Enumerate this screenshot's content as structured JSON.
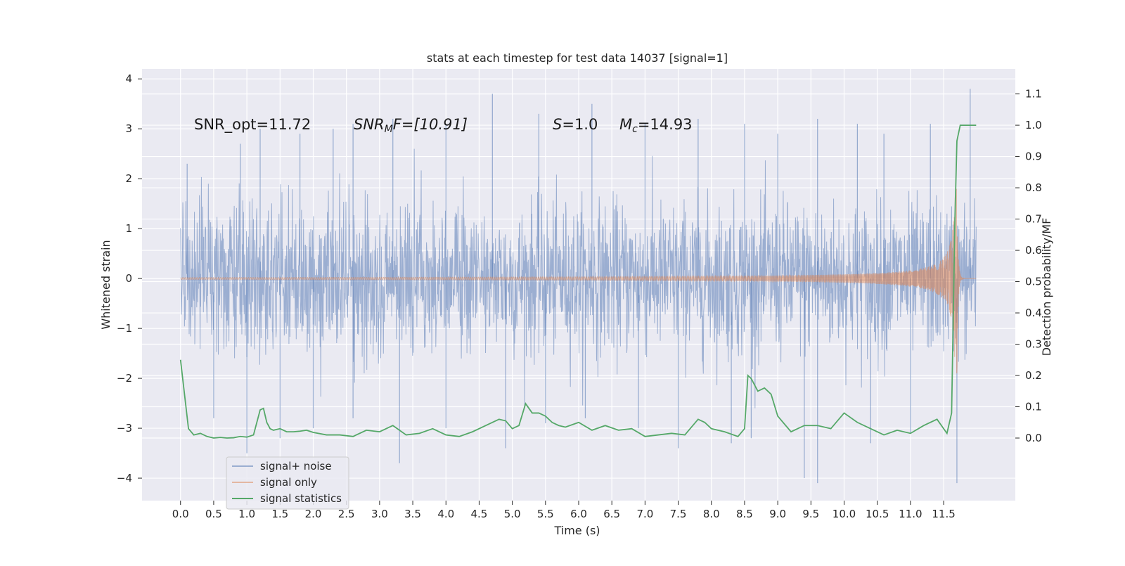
{
  "chart_data": {
    "type": "line",
    "title": "stats at each timestep for test data 14037 [signal=1]",
    "xlabel": "Time (s)",
    "ylabel": "Whitened strain",
    "ylabel_right": "Detection probability/MF",
    "xlim": [
      -0.58,
      12.58
    ],
    "ylim": [
      -4.45,
      4.2
    ],
    "ylim_right": [
      -0.2,
      1.18
    ],
    "xticks": [
      "0.0",
      "0.5",
      "1.0",
      "1.5",
      "2.0",
      "2.5",
      "3.0",
      "3.5",
      "4.0",
      "4.5",
      "5.0",
      "5.5",
      "6.0",
      "6.5",
      "7.0",
      "7.5",
      "8.0",
      "8.5",
      "9.0",
      "9.5",
      "10.0",
      "10.5",
      "11.0",
      "11.5"
    ],
    "yticks": [
      "4",
      "3",
      "2",
      "1",
      "0",
      "−1",
      "−2",
      "−3",
      "−4"
    ],
    "yticks_right": [
      "1.1",
      "1.0",
      "0.9",
      "0.8",
      "0.7",
      "0.6",
      "0.5",
      "0.4",
      "0.3",
      "0.2",
      "0.1",
      "0.0"
    ],
    "grid": true,
    "legend_position": "lower-left",
    "annotations": {
      "snr_opt": "SNR_opt=11.72",
      "snr_mf_main": "SNR",
      "snr_mf_sub": "M",
      "snr_mf_rest": "F=[10.91]",
      "s_main": "S",
      "s_rest": "=1.0",
      "mc_main": "M",
      "mc_sub": "c",
      "mc_rest": "=14.93"
    },
    "series": [
      {
        "name": "signal+ noise",
        "color": "#4c72b0",
        "description_only": false,
        "envelope": {
          "t": [
            0.0,
            11.99
          ],
          "typical_amplitude": 1.5,
          "peak_high": [
            [
              0.1,
              2.3
            ],
            [
              0.9,
              2.7
            ],
            [
              1.2,
              3.0
            ],
            [
              1.8,
              2.9
            ],
            [
              2.3,
              3.0
            ],
            [
              2.6,
              3.1
            ],
            [
              3.2,
              3.2
            ],
            [
              4.0,
              3.1
            ],
            [
              4.7,
              3.7
            ],
            [
              5.4,
              3.3
            ],
            [
              6.2,
              3.5
            ],
            [
              7.0,
              3.1
            ],
            [
              7.8,
              3.2
            ],
            [
              8.5,
              3.1
            ],
            [
              9.0,
              2.9
            ],
            [
              9.6,
              3.2
            ],
            [
              10.2,
              3.1
            ],
            [
              10.6,
              2.9
            ],
            [
              11.3,
              3.1
            ],
            [
              11.9,
              3.8
            ]
          ],
          "peak_low": [
            [
              0.5,
              -2.8
            ],
            [
              1.0,
              -3.5
            ],
            [
              1.5,
              -3.2
            ],
            [
              2.0,
              -3.0
            ],
            [
              2.6,
              -2.8
            ],
            [
              3.3,
              -3.7
            ],
            [
              4.0,
              -3.0
            ],
            [
              4.9,
              -3.4
            ],
            [
              5.5,
              -2.9
            ],
            [
              6.1,
              -2.8
            ],
            [
              6.9,
              -3.0
            ],
            [
              7.5,
              -3.4
            ],
            [
              8.3,
              -3.3
            ],
            [
              8.6,
              -3.2
            ],
            [
              9.4,
              -4.0
            ],
            [
              9.6,
              -4.1
            ],
            [
              10.4,
              -3.3
            ],
            [
              11.0,
              -3.1
            ],
            [
              11.7,
              -4.1
            ]
          ]
        }
      },
      {
        "name": "signal only",
        "color": "#dd8452",
        "chirp": {
          "t_start": 0.0,
          "t_merge": 11.7,
          "t_end": 11.99,
          "amp_start": 0.02,
          "amp_peak": 2.0
        }
      },
      {
        "name": "signal statistics",
        "color": "#55a868",
        "axis": "right",
        "x": [
          0.0,
          0.12,
          0.2,
          0.3,
          0.4,
          0.5,
          0.6,
          0.7,
          0.8,
          0.9,
          1.0,
          1.1,
          1.2,
          1.25,
          1.3,
          1.35,
          1.4,
          1.5,
          1.6,
          1.7,
          1.8,
          1.9,
          2.0,
          2.2,
          2.4,
          2.6,
          2.8,
          3.0,
          3.2,
          3.4,
          3.6,
          3.8,
          4.0,
          4.2,
          4.4,
          4.6,
          4.8,
          4.9,
          5.0,
          5.1,
          5.2,
          5.3,
          5.4,
          5.5,
          5.6,
          5.7,
          5.8,
          6.0,
          6.2,
          6.4,
          6.6,
          6.8,
          7.0,
          7.2,
          7.4,
          7.6,
          7.8,
          7.9,
          8.0,
          8.2,
          8.4,
          8.5,
          8.55,
          8.6,
          8.7,
          8.8,
          8.9,
          9.0,
          9.2,
          9.4,
          9.6,
          9.8,
          10.0,
          10.2,
          10.4,
          10.6,
          10.8,
          11.0,
          11.2,
          11.4,
          11.55,
          11.62,
          11.67,
          11.7,
          11.75,
          11.8,
          11.9,
          11.99
        ],
        "values": [
          0.25,
          0.03,
          0.01,
          0.015,
          0.005,
          0.0,
          0.002,
          0.0,
          0.001,
          0.005,
          0.003,
          0.01,
          0.09,
          0.095,
          0.05,
          0.03,
          0.025,
          0.03,
          0.02,
          0.02,
          0.022,
          0.025,
          0.018,
          0.01,
          0.01,
          0.005,
          0.025,
          0.02,
          0.04,
          0.01,
          0.015,
          0.03,
          0.01,
          0.005,
          0.02,
          0.04,
          0.06,
          0.055,
          0.03,
          0.04,
          0.11,
          0.08,
          0.08,
          0.07,
          0.05,
          0.04,
          0.035,
          0.05,
          0.025,
          0.04,
          0.025,
          0.03,
          0.005,
          0.01,
          0.015,
          0.01,
          0.06,
          0.05,
          0.03,
          0.02,
          0.005,
          0.03,
          0.2,
          0.19,
          0.15,
          0.16,
          0.14,
          0.07,
          0.02,
          0.04,
          0.04,
          0.03,
          0.08,
          0.05,
          0.03,
          0.01,
          0.025,
          0.015,
          0.04,
          0.06,
          0.015,
          0.08,
          0.7,
          0.95,
          1.0,
          1.0,
          1.0,
          1.0
        ]
      }
    ]
  }
}
